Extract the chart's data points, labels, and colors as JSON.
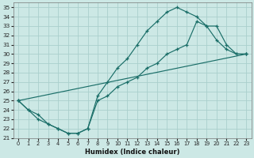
{
  "xlabel": "Humidex (Indice chaleur)",
  "bg_color": "#cce8e5",
  "grid_color": "#aacfcc",
  "line_color": "#1a6e68",
  "xlim": [
    -0.5,
    23.5
  ],
  "ylim": [
    21,
    35.5
  ],
  "yticks": [
    21,
    22,
    23,
    24,
    25,
    26,
    27,
    28,
    29,
    30,
    31,
    32,
    33,
    34,
    35
  ],
  "xticks": [
    0,
    1,
    2,
    3,
    4,
    5,
    6,
    7,
    8,
    9,
    10,
    11,
    12,
    13,
    14,
    15,
    16,
    17,
    18,
    19,
    20,
    21,
    22,
    23
  ],
  "series": [
    {
      "x": [
        0,
        1,
        2,
        3,
        4,
        5,
        6,
        7,
        8,
        9,
        10,
        11,
        12,
        13,
        14,
        15,
        16,
        17,
        18,
        19,
        20,
        21,
        22,
        23
      ],
      "y": [
        25,
        24,
        23.5,
        22.5,
        22,
        21.5,
        21.5,
        22,
        25.5,
        27,
        28.5,
        29.5,
        31,
        32.5,
        33.5,
        34.5,
        35,
        34.5,
        34,
        33,
        31.5,
        30.5,
        30,
        30
      ]
    },
    {
      "x": [
        0,
        1,
        2,
        3,
        4,
        5,
        6,
        7,
        8,
        9,
        10,
        11,
        12,
        13,
        14,
        15,
        16,
        17,
        18,
        19,
        20,
        21,
        22,
        23
      ],
      "y": [
        25,
        24,
        23,
        22.5,
        22,
        21.5,
        21.5,
        22,
        25,
        25.5,
        26.5,
        27,
        27.5,
        28.5,
        29,
        30,
        30.5,
        31,
        33.5,
        33,
        33,
        31,
        30,
        30
      ]
    },
    {
      "x": [
        0,
        23
      ],
      "y": [
        25,
        30
      ]
    }
  ]
}
